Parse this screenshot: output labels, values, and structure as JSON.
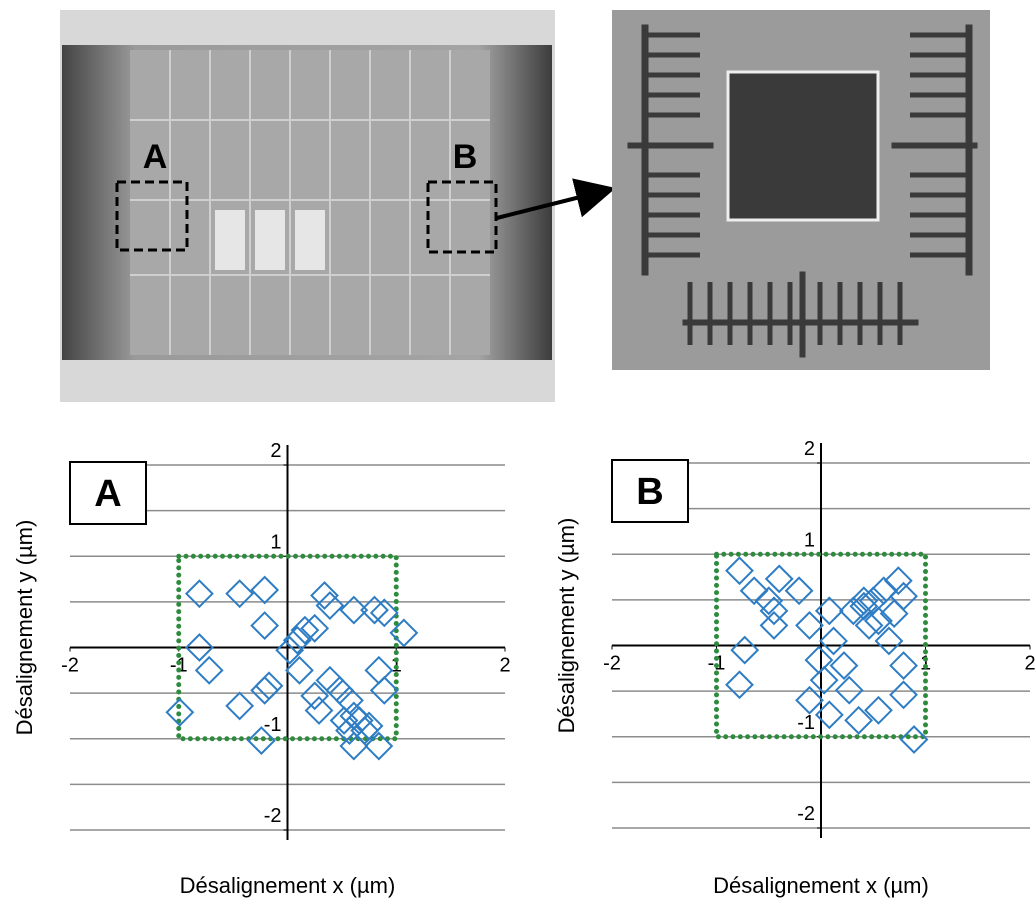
{
  "photo": {
    "labels": [
      "A",
      "B"
    ]
  },
  "chart_data": [
    {
      "type": "scatter",
      "panel_label": "A",
      "xlabel": "Désalignement x (µm)",
      "ylabel": "Désalignement y (µm)",
      "xlim": [
        -2,
        2
      ],
      "ylim": [
        -2,
        2
      ],
      "xticks": [
        -2,
        -1,
        1,
        2
      ],
      "yticks": [
        -2,
        -1,
        1,
        2
      ],
      "ygrid": [
        -2,
        -1.5,
        -1,
        -0.5,
        0,
        0.5,
        1,
        1.5,
        2
      ],
      "tolerance_box": [
        -1,
        1
      ],
      "tolerance_color": "#2e8b3e",
      "series": [
        {
          "color": "#2e7dc4",
          "marker": "diamond",
          "x": [
            -0.81,
            -0.44,
            -0.21,
            -0.21,
            -0.81,
            -0.72,
            -0.44,
            -0.21,
            -0.17,
            -0.99,
            -0.24,
            0.02,
            0.09,
            0.16,
            0.25,
            0.11,
            0.34,
            0.39,
            0.61,
            0.8,
            0.89,
            1.07,
            0.84,
            0.89,
            0.39,
            0.48,
            0.57,
            0.61,
            0.66,
            0.71,
            0.75,
            0.57,
            0.61,
            0.84,
            0.25,
            0.29,
            0.52
          ],
          "values": [
            0.59,
            0.59,
            0.63,
            0.24,
            0.0,
            -0.25,
            -0.64,
            -0.47,
            -0.42,
            -0.71,
            -1.02,
            -0.03,
            0.08,
            0.19,
            0.21,
            -0.25,
            0.57,
            0.46,
            0.41,
            0.41,
            0.38,
            0.16,
            -0.25,
            -0.47,
            -0.36,
            -0.47,
            -0.58,
            -0.75,
            -0.8,
            -0.91,
            -0.86,
            -0.91,
            -1.08,
            -1.08,
            -0.53,
            -0.69,
            -0.8
          ]
        }
      ]
    },
    {
      "type": "scatter",
      "panel_label": "B",
      "xlabel": "Désalignement x (µm)",
      "ylabel": "Désalignement y (µm)",
      "xlim": [
        -2,
        2
      ],
      "ylim": [
        -2,
        2
      ],
      "xticks": [
        -2,
        -1,
        1,
        2
      ],
      "yticks": [
        -2,
        -1,
        1,
        2
      ],
      "ygrid": [
        -2,
        -1.5,
        -1,
        -0.5,
        0,
        0.5,
        1,
        1.5,
        2
      ],
      "tolerance_box": [
        -1,
        1
      ],
      "tolerance_color": "#2e8b3e",
      "series": [
        {
          "color": "#2e7dc4",
          "marker": "diamond",
          "x": [
            -0.78,
            -0.64,
            -0.5,
            -0.45,
            -0.73,
            -0.78,
            -0.21,
            -0.4,
            -0.45,
            -0.11,
            0.08,
            0.12,
            -0.02,
            0.03,
            0.22,
            0.27,
            -0.11,
            0.08,
            0.31,
            0.41,
            0.5,
            0.6,
            0.74,
            0.79,
            0.55,
            0.7,
            0.65,
            0.79,
            0.79,
            0.55,
            0.36,
            0.89,
            0.41,
            0.46
          ],
          "values": [
            0.82,
            0.6,
            0.49,
            0.22,
            -0.05,
            -0.43,
            0.6,
            0.73,
            0.38,
            0.22,
            0.38,
            0.05,
            -0.16,
            -0.38,
            -0.22,
            -0.49,
            -0.6,
            -0.76,
            0.38,
            0.43,
            0.49,
            0.6,
            0.71,
            0.54,
            0.27,
            0.35,
            0.05,
            -0.22,
            -0.54,
            -0.71,
            -0.82,
            -1.03,
            0.49,
            0.22
          ]
        }
      ]
    }
  ]
}
